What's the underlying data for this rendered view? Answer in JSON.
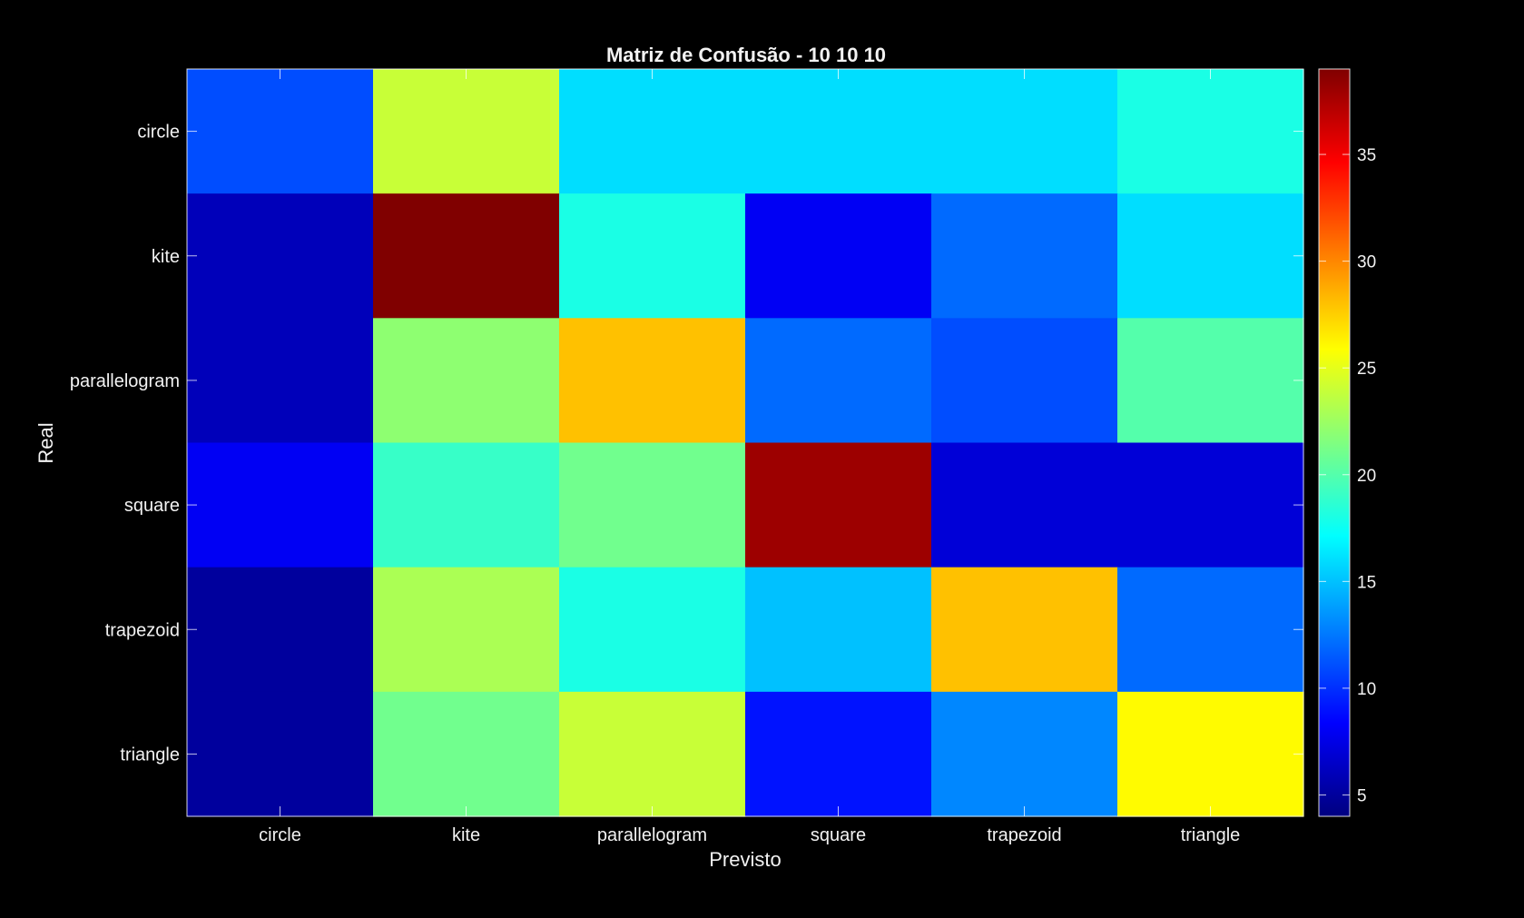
{
  "chart_data": {
    "type": "heatmap",
    "title": "Matriz de Confusão - 10  10  10",
    "xlabel": "Previsto",
    "ylabel": "Real",
    "x_categories": [
      "circle",
      "kite",
      "parallelogram",
      "square",
      "trapezoid",
      "triangle"
    ],
    "y_categories": [
      "circle",
      "kite",
      "parallelogram",
      "square",
      "trapezoid",
      "triangle"
    ],
    "values": [
      [
        11,
        24,
        16,
        16,
        16,
        18
      ],
      [
        6,
        39,
        18,
        8,
        12,
        16
      ],
      [
        6,
        22,
        28,
        12,
        11,
        20
      ],
      [
        8,
        19,
        21,
        38,
        7,
        7
      ],
      [
        5,
        23,
        18,
        15,
        28,
        12
      ],
      [
        5,
        21,
        24,
        9,
        13,
        26
      ]
    ],
    "colormap": "jet",
    "colorbar": {
      "range": [
        4,
        39
      ],
      "ticks": [
        5,
        10,
        15,
        20,
        25,
        30,
        35
      ]
    },
    "grid": false,
    "legend": "colorbar-right"
  }
}
